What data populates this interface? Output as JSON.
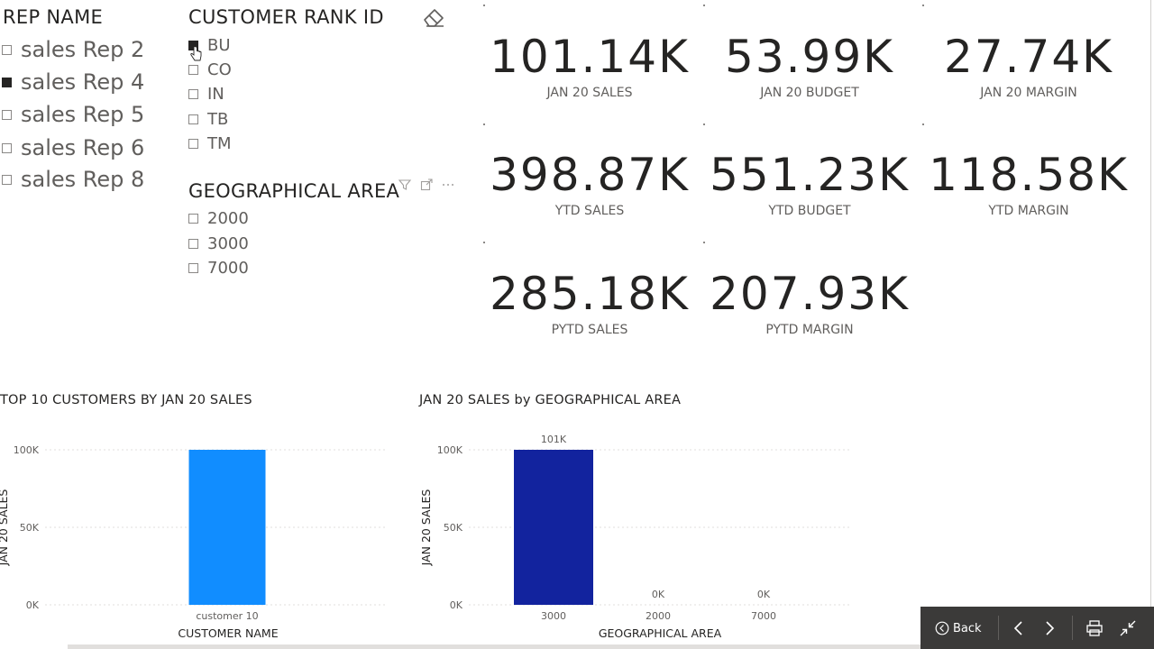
{
  "rep_slicer": {
    "title": "REP NAME",
    "items": [
      {
        "label": "sales Rep 2",
        "checked": false
      },
      {
        "label": "sales Rep 4",
        "checked": true
      },
      {
        "label": "sales Rep 5",
        "checked": false
      },
      {
        "label": "sales Rep 6",
        "checked": false
      },
      {
        "label": "sales Rep 8",
        "checked": false
      }
    ]
  },
  "rank_slicer": {
    "title": "CUSTOMER RANK ID",
    "items": [
      {
        "label": "BU",
        "checked": true
      },
      {
        "label": "CO",
        "checked": false
      },
      {
        "label": "IN",
        "checked": false
      },
      {
        "label": "TB",
        "checked": false
      },
      {
        "label": "TM",
        "checked": false
      }
    ]
  },
  "geo_slicer": {
    "title": "GEOGRAPHICAL AREA",
    "items": [
      {
        "label": "2000",
        "checked": false
      },
      {
        "label": "3000",
        "checked": false
      },
      {
        "label": "7000",
        "checked": false
      }
    ]
  },
  "cards": [
    {
      "value": "101.14K",
      "label": "JAN 20 SALES"
    },
    {
      "value": "53.99K",
      "label": "JAN 20 BUDGET"
    },
    {
      "value": "27.74K",
      "label": "JAN 20 MARGIN"
    },
    {
      "value": "398.87K",
      "label": "YTD SALES"
    },
    {
      "value": "551.23K",
      "label": "YTD BUDGET"
    },
    {
      "value": "118.58K",
      "label": "YTD MARGIN"
    },
    {
      "value": "285.18K",
      "label": "PYTD SALES"
    },
    {
      "value": "207.93K",
      "label": "PYTD MARGIN"
    }
  ],
  "chart_data": [
    {
      "type": "bar",
      "title": "TOP 10 CUSTOMERS BY JAN 20 SALES",
      "xlabel": "CUSTOMER NAME",
      "ylabel": "JAN 20 SALES",
      "categories": [
        "customer 10"
      ],
      "values": [
        101140
      ],
      "ylim": [
        0,
        100000
      ],
      "yticks": [
        "0K",
        "50K",
        "100K"
      ],
      "color": "#118dff",
      "grid": true
    },
    {
      "type": "bar",
      "title": "JAN 20 SALES by GEOGRAPHICAL AREA",
      "xlabel": "GEOGRAPHICAL AREA",
      "ylabel": "JAN 20 SALES",
      "categories": [
        "3000",
        "2000",
        "7000"
      ],
      "values": [
        101140,
        0,
        0
      ],
      "data_labels": [
        "101K",
        "0K",
        "0K"
      ],
      "ylim": [
        0,
        100000
      ],
      "yticks": [
        "0K",
        "50K",
        "100K"
      ],
      "color": "#12239e",
      "grid": true
    }
  ],
  "navbar": {
    "back_label": "Back"
  }
}
